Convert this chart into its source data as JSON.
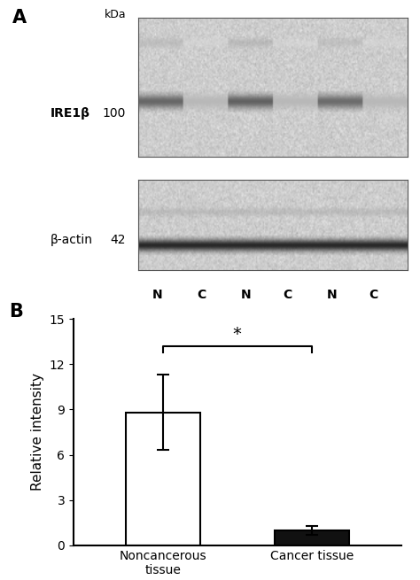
{
  "panel_A_label": "A",
  "panel_B_label": "B",
  "kda_label": "kDa",
  "ire1b_label": "IRE1β",
  "ire1b_kda": "100",
  "bactin_label": "β-actin",
  "bactin_kda": "42",
  "lane_labels": [
    "N",
    "C",
    "N",
    "C",
    "N",
    "C"
  ],
  "bar_values": [
    8.8,
    1.0
  ],
  "bar_errors": [
    2.5,
    0.3
  ],
  "bar_colors": [
    "#ffffff",
    "#111111"
  ],
  "bar_edge_colors": [
    "#000000",
    "#000000"
  ],
  "bar_labels": [
    "Noncancerous\ntissue",
    "Cancer tissue"
  ],
  "ylabel": "Relative intensity",
  "ylim": [
    0,
    15
  ],
  "yticks": [
    0,
    3,
    6,
    9,
    12,
    15
  ],
  "significance_star": "*",
  "background_color": "#ffffff",
  "fig_width": 4.74,
  "fig_height": 6.55,
  "fig_dpi": 100
}
